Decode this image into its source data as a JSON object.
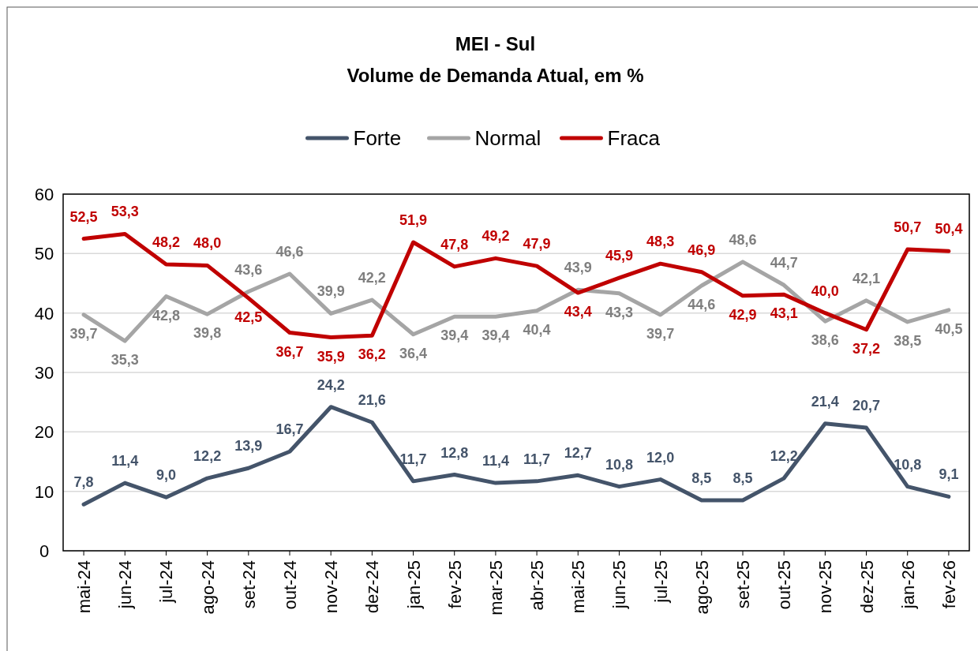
{
  "chart_data": {
    "type": "line",
    "title": "MEI - Sul",
    "subtitle": "Volume de Demanda Atual, em %",
    "categories": [
      "mai-24",
      "jun-24",
      "jul-24",
      "ago-24",
      "set-24",
      "out-24",
      "nov-24",
      "dez-24",
      "jan-25",
      "fev-25",
      "mar-25",
      "abr-25",
      "mai-25",
      "jun-25",
      "jul-25",
      "ago-25",
      "set-25",
      "out-25",
      "nov-25",
      "dez-25",
      "jan-26",
      "fev-26"
    ],
    "series": [
      {
        "name": "Forte",
        "color": "#44546a",
        "values": [
          7.8,
          11.4,
          9.0,
          12.2,
          13.9,
          16.7,
          24.2,
          21.6,
          11.7,
          12.8,
          11.4,
          11.7,
          12.7,
          10.8,
          12.0,
          8.5,
          8.5,
          12.2,
          21.4,
          20.7,
          10.8,
          9.1
        ],
        "value_labels": [
          "7,8",
          "11,4",
          "9,0",
          "12,2",
          "13,9",
          "16,7",
          "24,2",
          "21,6",
          "11,7",
          "12,8",
          "11,4",
          "11,7",
          "12,7",
          "10,8",
          "12,0",
          "8,5",
          "8,5",
          "12,2",
          "21,4",
          "20,7",
          "10,8",
          "9,1"
        ]
      },
      {
        "name": "Normal",
        "color": "#a5a5a5",
        "values": [
          39.7,
          35.3,
          42.8,
          39.8,
          43.6,
          46.6,
          39.9,
          42.2,
          36.4,
          39.4,
          39.4,
          40.4,
          43.9,
          43.3,
          39.7,
          44.6,
          48.6,
          44.7,
          38.6,
          42.1,
          38.5,
          40.5
        ],
        "value_labels": [
          "39,7",
          "35,3",
          "42,8",
          "39,8",
          "43,6",
          "46,6",
          "39,9",
          "42,2",
          "36,4",
          "39,4",
          "39,4",
          "40,4",
          "43,9",
          "43,3",
          "39,7",
          "44,6",
          "48,6",
          "44,7",
          "38,6",
          "42,1",
          "38,5",
          "40,5"
        ]
      },
      {
        "name": "Fraca",
        "color": "#c00000",
        "values": [
          52.5,
          53.3,
          48.2,
          48.0,
          42.5,
          36.7,
          35.9,
          36.2,
          51.9,
          47.8,
          49.2,
          47.9,
          43.4,
          45.9,
          48.3,
          46.9,
          42.9,
          43.1,
          40.0,
          37.2,
          50.7,
          50.4
        ],
        "value_labels": [
          "52,5",
          "53,3",
          "48,2",
          "48,0",
          "42,5",
          "36,7",
          "35,9",
          "36,2",
          "51,9",
          "47,8",
          "49,2",
          "47,9",
          "43,4",
          "45,9",
          "48,3",
          "46,9",
          "42,9",
          "43,1",
          "40,0",
          "37,2",
          "50,7",
          "50,4"
        ]
      }
    ],
    "ylim": [
      0,
      60
    ],
    "yticks": [
      0,
      10,
      20,
      30,
      40,
      50,
      60
    ],
    "grid": "y",
    "legend": "top"
  }
}
